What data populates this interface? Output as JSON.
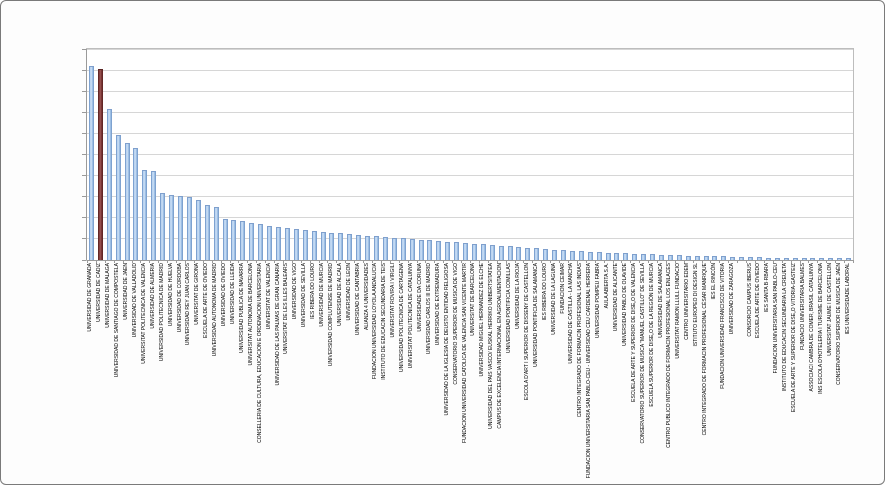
{
  "chart_data": {
    "type": "bar",
    "title": "",
    "xlabel": "",
    "ylabel": "",
    "ylim": [
      0,
      2000000
    ],
    "ytick_step": 200000,
    "grid": true,
    "legend": false,
    "ytick_labels": [
      "0,00",
      "200.000,00",
      "400.000,00",
      "600.000,00",
      "800.000,00",
      "1.000.000,00",
      "1.200.000,00",
      "1.400.000,00",
      "1.600.000,00",
      "1.800.000,00",
      "2.000.000,00"
    ],
    "bar_color_default": "#95B3D7",
    "bar_color_highlight": "#632423",
    "highlight_index": 1,
    "categories": [
      "UNIVERSIDAD DE GRANADA",
      "UNIVERSIDAD DE CADIZ",
      "UNIVERSIDAD DE MALAGA",
      "UNIVERSIDAD DE SANTIAGO DE COMPOSTELA",
      "UNIVERSIDAD DE JAEN",
      "UNIVERSIDAD DE VALLADOLID",
      "UNIVERSITAT POLITECNICA DE VALENCIA",
      "UNIVERSIDAD DE ALMERIA",
      "UNIVERSIDAD POLITECNICA DE MADRID",
      "UNIVERSIDAD DE HUELVA",
      "UNIVERSIDAD DE CORDOBA",
      "UNIVERSIDAD REY JUAN CARLOS",
      "UNIVERSITAT DE GIRONA",
      "ESCUELA DE ARTE DE OVIEDO",
      "UNIVERSIDAD AUTONOMA DE MADRID",
      "UNIVERSIDAD DE OVIEDO",
      "UNIVERSIDAD DE LLEIDA",
      "UNIVERSIDAD PUBLICA DE NAVARRA",
      "UNIVERSITAT AUTONOMA DE BARCELONA",
      "CONSELLERIA DE CULTURA, EDUCACION E ORDENACION UNIVERSITARIA",
      "UNIVERSITAT DE VALENCIA",
      "UNIVERSIDAD DE LAS PALMAS DE GRAN CANARIA",
      "UNIVERSITAT DE LES ILLES BALEARS",
      "UNIVERSIDAD DE VIGO",
      "UNIVERSIDAD DE SEVILLA",
      "IES RIBERA DO LOURO",
      "UNIVERSIDAD DE MURCIA",
      "UNIVERSIDAD COMPLUTENSE DE MADRID",
      "UNIVERSIDAD DE ALCALA",
      "UNIVERSIDAD DE LEON",
      "UNIVERSIDAD DE CANTABRIA",
      "ALIANZA 4 UNIVERSIDADES",
      "FUNDACION UNIVERSIDAD LOYOLA ANDALUCIA",
      "INSTITUTO DE EDUCACIN SECUNDARIA DE TEIS",
      "UNIVERSITAT ROVIRA I VIRGILI",
      "UNIVERSIDAD POLITECNICA DE CARTAGENA",
      "UNIVERSITAT POLITECNICA DE CATALUNYA",
      "UNIVERSIDADE DA CORUNA",
      "UNIVERSIDAD CARLOS III DE MADRID",
      "UNIVERSIDAD DE EXTREMADURA",
      "UNIVERSIDAD DE LA IGLESIA DE DEUSTO ENTIDAD RELIGIOSA",
      "CONSERVATORIO SUPERIOR DE MUSICA DE VIGO",
      "FUNDACION UNIVERSIDAD CATOLICA DE VALENCIA SAN VICENTE MARTIR",
      "UNIVERSITAT DE BARCELONA",
      "UNIVERSIDAD MIGUEL HERNANDEZ DE ELCHE",
      "UNIVERSIDAD DEL PAIS VASCO/ EUSKAL HERRIKO UNIBERTSITATEA",
      "CAMPUS DE EXCELENCIA INTERNACIONAL EN AGROALIMENTACION",
      "UNIVERSIDAD PONTIFICIA COMILLAS",
      "UNIVERSIDAD DE LA RIOJA",
      "ESCOLA D'ART I SUPERIOR DE DISSENY DE CASTELLON",
      "UNIVERSIDAD PONTIFICIA DE SALAMANCA",
      "IES RIBEIRA DO LOURO",
      "UNIVERSIDAD DE LA LAGUNA",
      "FUNDACION CEIMAR",
      "UNIVERSIDAD DE CASTILLA - LA MANCHA",
      "CENTRO INTEGRADO DE FORMACIN PROFESIONAL LAS INDIAS",
      "FUNDACION UNIVERSITARIA SAN PABLO-CEU - UNIVERSIDAD CEU CARDENAL HERRERA",
      "UNIVERSIDAD POMPEU FABRA",
      "AULA ABIERTA S.A.",
      "UNIVERSIDAD DE ALICANTE",
      "UNIVERSIDAD PABLO DE OLAVIDE",
      "ESCUELA DE ARTE Y SUPERIOR DE DISE„O DE VALENCIA",
      "CONSERVATORIO SUPERIOR DE MUSICA \"MANUEL CASTILLO\" DE SEVILLA",
      "ESCUELA SUPERIOR DE DISE„O DE LA REGIÓN DE MURCIA",
      "UNIVERSIDAD DE SALAMANCA",
      "CENTRO PUBLICO INTEGRADO DE FORMACIN PROFESIONAL LOS ENLACES",
      "UNIVERSITAT RAMON LLULL FUNDACIO",
      "CENTRO UNIVERSITARIO EDEM",
      "ISTITUTO EUROPEO DI DESIGN SL",
      "CENTRO INTEGRADO DE FORMACIN PROFESIONAL CÉSAR MANRIQUE",
      "IES EL RINCÓN",
      "FUNDACION UNIVERSIDAD FRANCISCO DE VITORIA",
      "UNIVERSIDAD DE ZARAGOZA",
      "",
      "CONSORCIO CAMPUS IBERUS",
      "ESCUELA DE ARTE DE OVIEDO",
      "IES SANTA B·RBARA",
      "FUNDACION UNIVERSITARIA SAN PABLO-CEU",
      "INSTITUTO DE EDUCACIN SECUNDARIA LA CREUETA",
      "ESCUELA DE ARTE Y SUPERIOR DE DISE„O VITORIA-GASTEIZ",
      "FUNDACIO UNIVERSITARIA BALMES",
      "ASSOCIACI CAMBRA DE COMER‚ BRASIL CATALUNYA",
      "INS ESCOLA D'HOTELERIA I TURISME DE BARCELONA",
      "UNIVERSITAT JAUME I DE CASTELLON",
      "CONSERVATORIO SUPERIOR DE MUSICA DE JAÉN",
      "IES UNIVERSIDADE LABORAL"
    ],
    "values": [
      1830000,
      1805000,
      1420000,
      1175000,
      1100000,
      1050000,
      845000,
      830000,
      625000,
      610000,
      600000,
      585000,
      560000,
      510000,
      495000,
      380000,
      370000,
      360000,
      345000,
      330000,
      315000,
      300000,
      290000,
      282000,
      274000,
      266000,
      258000,
      250000,
      243000,
      236000,
      229000,
      222000,
      215000,
      208000,
      201000,
      195000,
      189000,
      183000,
      177000,
      171000,
      165000,
      159000,
      153000,
      147000,
      141000,
      135000,
      128000,
      121000,
      114000,
      107000,
      100000,
      94000,
      88000,
      83000,
      78000,
      73000,
      69000,
      65000,
      61000,
      57000,
      53000,
      50000,
      47000,
      44000,
      41000,
      38000,
      35000,
      32000,
      30000,
      28000,
      26000,
      24000,
      22000,
      20000,
      18000,
      16000,
      14000,
      13000,
      12000,
      11000,
      10000,
      9000,
      8000,
      7000,
      6000,
      5000
    ]
  }
}
